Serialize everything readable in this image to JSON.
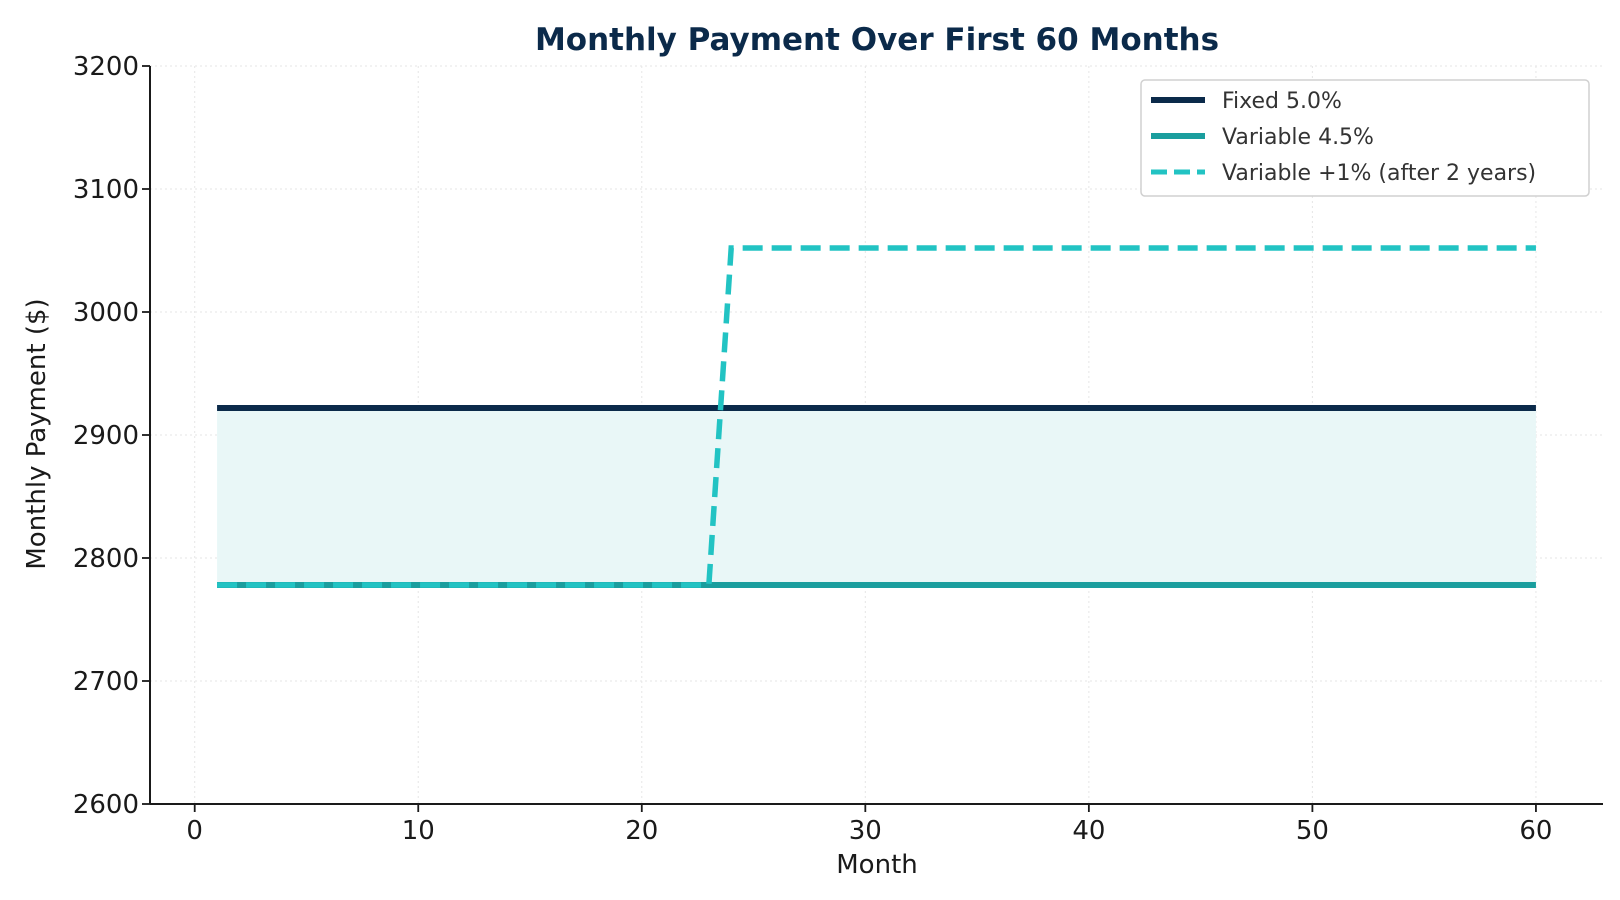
{
  "chart_data": {
    "type": "line",
    "title": "Monthly Payment Over First 60 Months",
    "xlabel": "Month",
    "ylabel": "Monthly Payment ($)",
    "xlim": [
      -2,
      63
    ],
    "ylim": [
      2600,
      3200
    ],
    "xticks": [
      0,
      10,
      20,
      30,
      40,
      50,
      60
    ],
    "yticks": [
      2600,
      2700,
      2800,
      2900,
      3000,
      3100,
      3200
    ],
    "grid": true,
    "legend_position": "top-right",
    "fill_between": {
      "from_series": "Variable 4.5%",
      "to_series": "Fixed 5.0%",
      "color": "#e9f7f7"
    },
    "series": [
      {
        "name": "Fixed 5.0%",
        "style": "solid",
        "color": "#0b2a4a",
        "x": [
          1,
          60
        ],
        "y": [
          2922,
          2922
        ]
      },
      {
        "name": "Variable 4.5%",
        "style": "solid",
        "color": "#1a9e9e",
        "x": [
          1,
          60
        ],
        "y": [
          2778,
          2778
        ]
      },
      {
        "name": "Variable +1% (after 2 years)",
        "style": "dashed",
        "color": "#22c3c3",
        "x": [
          1,
          23,
          24,
          60
        ],
        "y": [
          2778,
          2778,
          3052,
          3052
        ]
      }
    ]
  }
}
